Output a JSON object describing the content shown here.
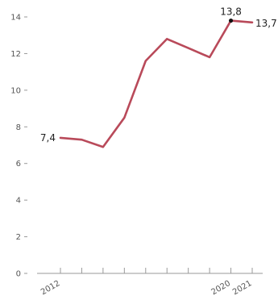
{
  "chart_data": {
    "type": "line",
    "title": "",
    "xlabel": "",
    "ylabel": "",
    "x": [
      2012,
      2013,
      2014,
      2015,
      2016,
      2017,
      2018,
      2019,
      2020,
      2021
    ],
    "series": [
      {
        "name": "",
        "values": [
          7.4,
          7.3,
          6.9,
          8.5,
          11.6,
          12.8,
          12.3,
          11.8,
          13.8,
          13.7
        ],
        "color": "#b94a5a"
      }
    ],
    "ylim": [
      0,
      14
    ],
    "y_ticks": [
      {
        "value": 0,
        "label": "0"
      },
      {
        "value": 2,
        "label": "2"
      },
      {
        "value": 4,
        "label": "4"
      },
      {
        "value": 6,
        "label": "6"
      },
      {
        "value": 8,
        "label": "8"
      },
      {
        "value": 10,
        "label": "10"
      },
      {
        "value": 12,
        "label": "12"
      },
      {
        "value": 14,
        "label": "14"
      }
    ],
    "x_tick_labels": [
      {
        "x": 2012,
        "label": "2012"
      },
      {
        "x": 2020,
        "label": "2020"
      },
      {
        "x": 2021,
        "label": "2021"
      }
    ],
    "data_labels": [
      {
        "x": 2012,
        "label": "7,4",
        "position": "left"
      },
      {
        "x": 2020,
        "label": "13,8",
        "position": "above"
      },
      {
        "x": 2021,
        "label": "13,7",
        "position": "right"
      }
    ],
    "highlight_point": {
      "x": 2020,
      "color": "#111111"
    },
    "axis_color": "#999999",
    "grid": false,
    "legend": "none"
  }
}
